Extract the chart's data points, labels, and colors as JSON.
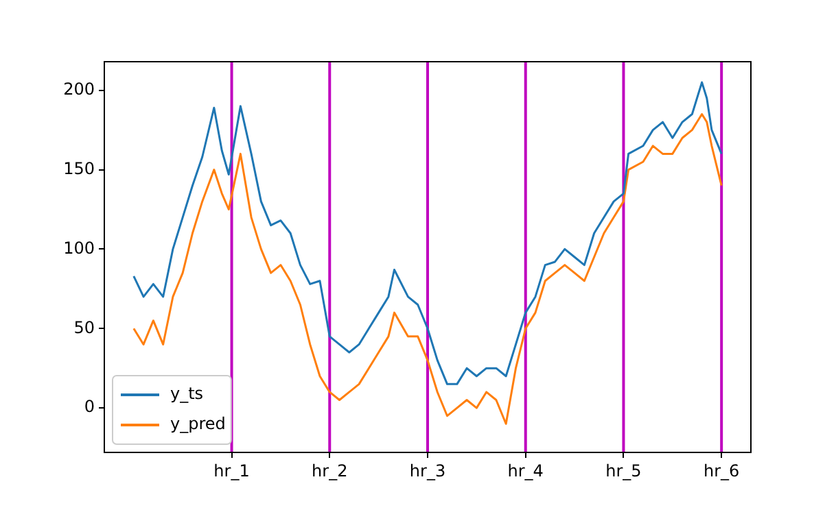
{
  "chart_data": {
    "type": "line",
    "x": [
      0,
      0.1,
      0.2,
      0.3,
      0.4,
      0.5,
      0.6,
      0.7,
      0.82,
      0.9,
      0.97,
      1.09,
      1.2,
      1.3,
      1.4,
      1.5,
      1.6,
      1.7,
      1.8,
      1.9,
      2.0,
      2.1,
      2.2,
      2.3,
      2.4,
      2.5,
      2.6,
      2.66,
      2.8,
      2.9,
      3.0,
      3.1,
      3.2,
      3.3,
      3.4,
      3.5,
      3.6,
      3.7,
      3.8,
      3.9,
      4.0,
      4.1,
      4.2,
      4.3,
      4.4,
      4.5,
      4.6,
      4.7,
      4.8,
      4.9,
      5.0,
      5.05,
      5.2,
      5.3,
      5.4,
      5.5,
      5.6,
      5.7,
      5.8,
      5.85,
      5.9,
      6.0
    ],
    "series": [
      {
        "name": "y_ts",
        "color": "#1f77b4",
        "values": [
          83,
          70,
          78,
          70,
          100,
          120,
          140,
          158,
          189,
          162,
          147,
          190,
          160,
          130,
          115,
          118,
          110,
          90,
          78,
          80,
          45,
          40,
          35,
          40,
          50,
          60,
          70,
          87,
          70,
          65,
          50,
          30,
          15,
          15,
          25,
          20,
          25,
          25,
          20,
          40,
          60,
          70,
          90,
          92,
          100,
          95,
          90,
          110,
          120,
          130,
          135,
          160,
          165,
          175,
          180,
          170,
          180,
          185,
          205,
          195,
          175,
          160
        ]
      },
      {
        "name": "y_pred",
        "color": "#ff7f0e",
        "values": [
          50,
          40,
          55,
          40,
          70,
          85,
          110,
          130,
          150,
          135,
          125,
          160,
          120,
          100,
          85,
          90,
          80,
          65,
          40,
          20,
          10,
          5,
          10,
          15,
          25,
          35,
          45,
          60,
          45,
          45,
          30,
          10,
          -5,
          0,
          5,
          0,
          10,
          5,
          -10,
          25,
          50,
          60,
          80,
          85,
          90,
          85,
          80,
          95,
          110,
          120,
          130,
          150,
          155,
          165,
          160,
          160,
          170,
          175,
          185,
          180,
          165,
          140
        ]
      }
    ],
    "xlim": [
      -0.3,
      6.3
    ],
    "xticks": [
      {
        "value": 1,
        "label": "hr_1"
      },
      {
        "value": 2,
        "label": "hr_2"
      },
      {
        "value": 3,
        "label": "hr_3"
      },
      {
        "value": 4,
        "label": "hr_4"
      },
      {
        "value": 5,
        "label": "hr_5"
      },
      {
        "value": 6,
        "label": "hr_6"
      }
    ],
    "ylim": [
      -28,
      218
    ],
    "yticks": [
      0,
      50,
      100,
      150,
      200
    ],
    "ref_lines": [
      {
        "axis": "x",
        "value": 1,
        "color": "#bf00bf"
      },
      {
        "axis": "x",
        "value": 2,
        "color": "#bf00bf"
      },
      {
        "axis": "x",
        "value": 3,
        "color": "#bf00bf"
      },
      {
        "axis": "x",
        "value": 4,
        "color": "#bf00bf"
      },
      {
        "axis": "x",
        "value": 5,
        "color": "#bf00bf"
      },
      {
        "axis": "x",
        "value": 6,
        "color": "#bf00bf"
      }
    ],
    "grid": false,
    "legend": "bottom left",
    "marker": "none",
    "line_style": "solid"
  }
}
